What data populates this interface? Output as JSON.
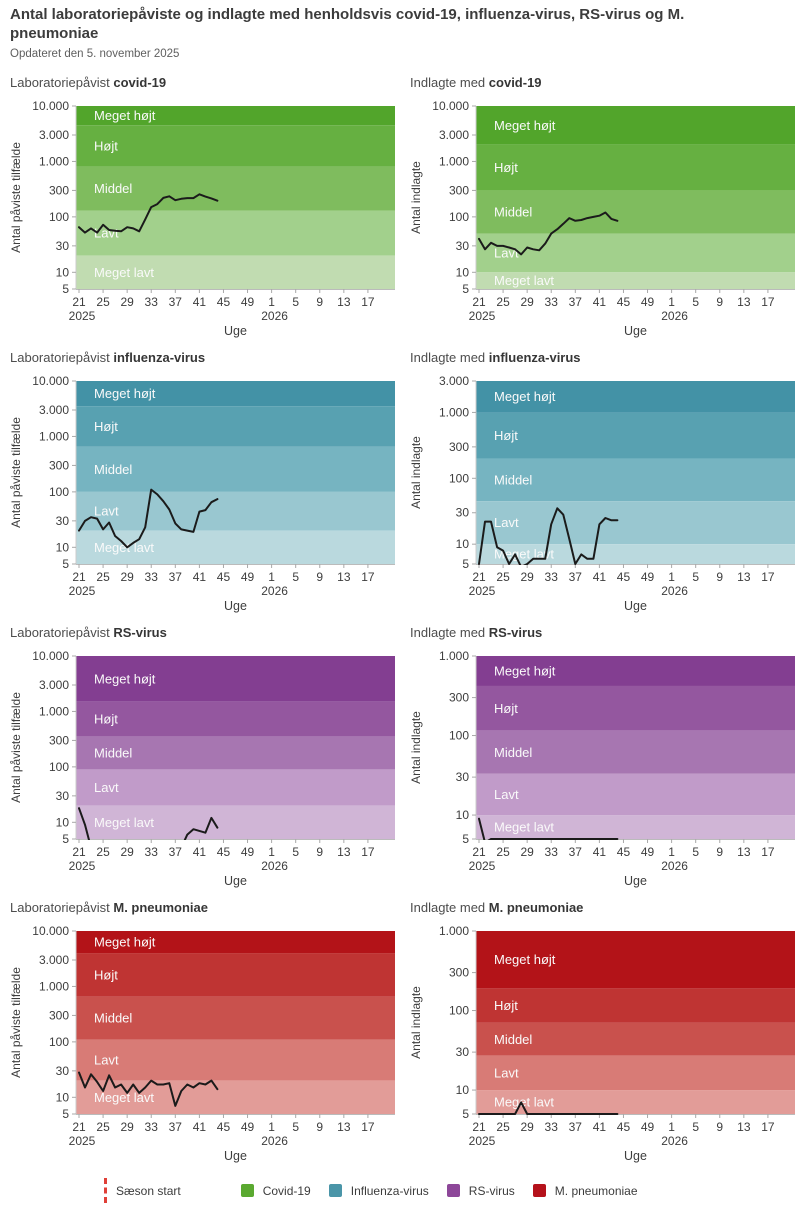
{
  "header": {
    "title": "Antal laboratoriepåviste og indlagte med henholdsvis covid-19, influenza-virus, RS-virus og M. pneumoniae",
    "subtitle": "Opdateret den 5. november 2025"
  },
  "axis_shared": {
    "x_label": "Uge",
    "x_domain_weeks": [
      20.5,
      73.5
    ],
    "x_tick_weeks": [
      21,
      25,
      29,
      33,
      37,
      41,
      45,
      49,
      53,
      57,
      61,
      65,
      69
    ],
    "x_tick_labels": [
      "21",
      "25",
      "29",
      "33",
      "37",
      "41",
      "45",
      "49",
      "1",
      "5",
      "9",
      "13",
      "17"
    ],
    "year_labels": [
      {
        "week": 21,
        "label": "2025"
      },
      {
        "week": 53,
        "label": "2026"
      }
    ],
    "data_start_week": 21
  },
  "band_labels": [
    "Meget højt",
    "Højt",
    "Middel",
    "Lavt",
    "Meget lavt"
  ],
  "palettes": {
    "covid": [
      "#52a52b",
      "#66b041",
      "#7fbc5e",
      "#a2d08c",
      "#c1dcb1"
    ],
    "influenza": [
      "#4392a6",
      "#58a1b1",
      "#76b4c1",
      "#99c7d0",
      "#bad9de"
    ],
    "rs": [
      "#833e91",
      "#94579f",
      "#a776b1",
      "#c19bc9",
      "#d0b5d6"
    ],
    "mp": [
      "#b31318",
      "#bf3433",
      "#c9514d",
      "#d87b76",
      "#e29c98"
    ]
  },
  "line_color": "#1b1b1b",
  "chart_data": [
    {
      "type": "line",
      "id": "covid-lab",
      "title_prefix": "Laboratoriepåvist",
      "title_disease": "covid-19",
      "ylabel": "Antal påviste tilfælde",
      "xlabel": "Uge",
      "ylim": [
        5,
        10000
      ],
      "yticks": [
        5,
        10,
        30,
        100,
        300,
        1000,
        3000,
        10000
      ],
      "ytick_labels": [
        "5",
        "10",
        "30",
        "100",
        "300",
        "1.000",
        "3.000",
        "10.000"
      ],
      "band_boundaries": [
        20,
        130,
        800,
        4500
      ],
      "palette": "covid",
      "weeks": [
        21,
        22,
        23,
        24,
        25,
        26,
        27,
        28,
        29,
        30,
        31,
        32,
        33,
        34,
        35,
        36,
        37,
        38,
        39,
        40,
        41,
        42,
        43,
        44
      ],
      "values": [
        65,
        52,
        62,
        52,
        72,
        58,
        56,
        55,
        65,
        62,
        55,
        90,
        150,
        170,
        220,
        235,
        200,
        212,
        218,
        218,
        255,
        232,
        215,
        196
      ]
    },
    {
      "type": "line",
      "id": "covid-ind",
      "title_prefix": "Indlagte med",
      "title_disease": "covid-19",
      "ylabel": "Antal indlagte",
      "xlabel": "Uge",
      "ylim": [
        5,
        10000
      ],
      "yticks": [
        5,
        10,
        30,
        100,
        300,
        1000,
        3000,
        10000
      ],
      "ytick_labels": [
        "5",
        "10",
        "30",
        "100",
        "300",
        "1.000",
        "3.000",
        "10.000"
      ],
      "band_boundaries": [
        10,
        50,
        300,
        2000
      ],
      "palette": "covid",
      "weeks": [
        21,
        22,
        23,
        24,
        25,
        26,
        27,
        28,
        29,
        30,
        31,
        32,
        33,
        34,
        35,
        36,
        37,
        38,
        39,
        40,
        41,
        42,
        43,
        44
      ],
      "values": [
        40,
        26,
        34,
        30,
        30,
        28,
        26,
        21,
        28,
        26,
        25,
        33,
        50,
        60,
        75,
        95,
        85,
        88,
        95,
        100,
        105,
        120,
        92,
        85
      ]
    },
    {
      "type": "line",
      "id": "flu-lab",
      "title_prefix": "Laboratoriepåvist",
      "title_disease": "influenza-virus",
      "ylabel": "Antal påviste tilfælde",
      "xlabel": "Uge",
      "ylim": [
        5,
        10000
      ],
      "yticks": [
        5,
        10,
        30,
        100,
        300,
        1000,
        3000,
        10000
      ],
      "ytick_labels": [
        "5",
        "10",
        "30",
        "100",
        "300",
        "1.000",
        "3.000",
        "10.000"
      ],
      "band_boundaries": [
        20,
        100,
        650,
        3500
      ],
      "palette": "influenza",
      "weeks": [
        21,
        22,
        23,
        24,
        25,
        26,
        27,
        28,
        29,
        30,
        31,
        32,
        33,
        34,
        35,
        36,
        37,
        38,
        39,
        40,
        41,
        42,
        43,
        44
      ],
      "values": [
        20,
        30,
        35,
        33,
        21,
        28,
        16,
        13,
        10,
        12,
        14,
        23,
        110,
        90,
        68,
        48,
        27,
        21,
        20,
        19,
        44,
        47,
        65,
        74
      ]
    },
    {
      "type": "line",
      "id": "flu-ind",
      "title_prefix": "Indlagte med",
      "title_disease": "influenza-virus",
      "ylabel": "Antal indlagte",
      "xlabel": "Uge",
      "ylim": [
        5,
        3000
      ],
      "yticks": [
        5,
        10,
        30,
        100,
        300,
        1000,
        3000
      ],
      "ytick_labels": [
        "5",
        "10",
        "30",
        "100",
        "300",
        "1.000",
        "3.000"
      ],
      "band_boundaries": [
        10,
        45,
        200,
        1000
      ],
      "palette": "influenza",
      "weeks": [
        21,
        22,
        23,
        24,
        25,
        26,
        27,
        28,
        29,
        30,
        31,
        32,
        33,
        34,
        35,
        36,
        37,
        38,
        39,
        40,
        41,
        42,
        43,
        44
      ],
      "values": [
        5,
        22,
        22,
        9,
        8,
        5,
        7,
        4.5,
        5,
        6,
        6,
        6,
        20,
        35,
        28,
        12,
        5,
        7,
        6,
        6,
        20,
        25,
        23,
        23
      ]
    },
    {
      "type": "line",
      "id": "rs-lab",
      "title_prefix": "Laboratoriepåvist",
      "title_disease": "RS-virus",
      "ylabel": "Antal påviste tilfælde",
      "xlabel": "Uge",
      "ylim": [
        5,
        10000
      ],
      "yticks": [
        5,
        10,
        30,
        100,
        300,
        1000,
        3000,
        10000
      ],
      "ytick_labels": [
        "5",
        "10",
        "30",
        "100",
        "300",
        "1.000",
        "3.000",
        "10.000"
      ],
      "band_boundaries": [
        20,
        90,
        350,
        1500
      ],
      "palette": "rs",
      "weeks": [
        21,
        22,
        23,
        24,
        25,
        26,
        27,
        28,
        29,
        30,
        31,
        32,
        33,
        34,
        35,
        36,
        37,
        38,
        39,
        40,
        41,
        42,
        43,
        44
      ],
      "values": [
        18,
        9,
        3.5,
        null,
        null,
        null,
        null,
        null,
        null,
        null,
        null,
        null,
        null,
        null,
        null,
        null,
        null,
        3.5,
        6,
        7.5,
        7,
        6.5,
        12,
        8
      ]
    },
    {
      "type": "line",
      "id": "rs-ind",
      "title_prefix": "Indlagte med",
      "title_disease": "RS-virus",
      "ylabel": "Antal indlagte",
      "xlabel": "Uge",
      "ylim": [
        5,
        1000
      ],
      "yticks": [
        5,
        10,
        30,
        100,
        300,
        1000
      ],
      "ytick_labels": [
        "5",
        "10",
        "30",
        "100",
        "300",
        "1.000"
      ],
      "band_boundaries": [
        10,
        33,
        115,
        420
      ],
      "palette": "rs",
      "weeks": [
        21,
        22,
        23,
        24,
        25,
        26,
        27,
        28,
        29,
        30,
        31,
        32,
        33,
        34,
        35,
        36,
        37,
        38,
        39,
        40,
        41,
        42,
        43,
        44
      ],
      "values": [
        9,
        4.5,
        5,
        5,
        5,
        5,
        5,
        5,
        5,
        5,
        5,
        5,
        5,
        5,
        5,
        5,
        5,
        5,
        5,
        5,
        5,
        5,
        5,
        5
      ]
    },
    {
      "type": "line",
      "id": "mp-lab",
      "title_prefix": "Laboratoriepåvist",
      "title_disease": "M. pneumoniae",
      "ylabel": "Antal påviste tilfælde",
      "xlabel": "Uge",
      "ylim": [
        5,
        10000
      ],
      "yticks": [
        5,
        10,
        30,
        100,
        300,
        1000,
        3000,
        10000
      ],
      "ytick_labels": [
        "5",
        "10",
        "30",
        "100",
        "300",
        "1.000",
        "3.000",
        "10.000"
      ],
      "band_boundaries": [
        20,
        110,
        650,
        4000
      ],
      "palette": "mp",
      "weeks": [
        21,
        22,
        23,
        24,
        25,
        26,
        27,
        28,
        29,
        30,
        31,
        32,
        33,
        34,
        35,
        36,
        37,
        38,
        39,
        40,
        41,
        42,
        43,
        44
      ],
      "values": [
        28,
        15,
        26,
        19,
        13,
        25,
        15,
        17,
        12,
        17,
        12,
        15,
        20,
        17,
        17,
        18,
        7,
        13,
        17,
        15,
        18,
        17,
        20,
        14
      ]
    },
    {
      "type": "line",
      "id": "mp-ind",
      "title_prefix": "Indlagte med",
      "title_disease": "M. pneumoniae",
      "ylabel": "Antal indlagte",
      "xlabel": "Uge",
      "ylim": [
        5,
        1000
      ],
      "yticks": [
        5,
        10,
        30,
        100,
        300,
        1000
      ],
      "ytick_labels": [
        "5",
        "10",
        "30",
        "100",
        "300",
        "1.000"
      ],
      "band_boundaries": [
        10,
        27,
        70,
        190
      ],
      "palette": "mp",
      "weeks": [
        21,
        22,
        23,
        24,
        25,
        26,
        27,
        28,
        29,
        30,
        31,
        32,
        33,
        34,
        35,
        36,
        37,
        38,
        39,
        40,
        41,
        42,
        43,
        44
      ],
      "values": [
        5,
        5,
        5,
        5,
        5,
        5,
        5,
        7,
        5,
        5,
        5,
        5,
        5,
        5,
        5,
        5,
        5,
        5,
        5,
        5,
        5,
        5,
        5,
        5
      ]
    }
  ],
  "legend": {
    "items": [
      {
        "type": "dashed-line",
        "label": "Sæson start",
        "color": "#e04038"
      },
      {
        "type": "swatch",
        "label": "Covid-19",
        "color": "#5aa930"
      },
      {
        "type": "swatch",
        "label": "Influenza-virus",
        "color": "#4a95a8"
      },
      {
        "type": "swatch",
        "label": "RS-virus",
        "color": "#8d4799"
      },
      {
        "type": "swatch",
        "label": "M. pneumoniae",
        "color": "#b5121b"
      }
    ]
  }
}
